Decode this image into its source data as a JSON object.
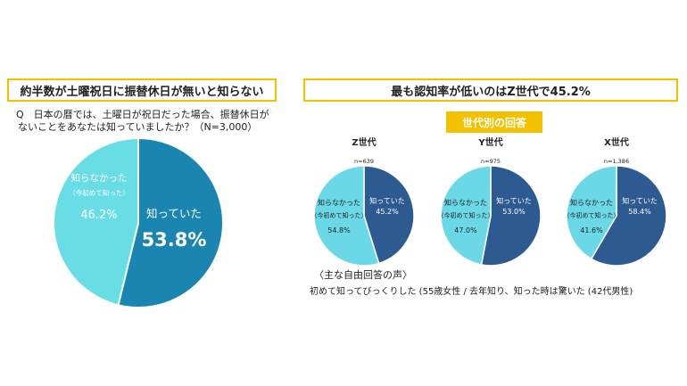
{
  "left": {
    "title": "約半数が土曜祝日に振替休日が無いと知らない",
    "question_line1": "Q　日本の暦では、土曜日が祝日だった場合、振替休日が",
    "question_line2": "ないことをあなたは知っていましたか？（N=3,000）"
  },
  "right": {
    "title": "最も認知率が低いのはZ世代で45.2%",
    "badge": "世代別の回答",
    "voices_head": "〈主な自由回答の声〉",
    "voices_body": "初めて知ってびっくりした (55歳女性 / 去年知り、知った時は驚いた (42代男性)"
  },
  "colors": {
    "known_main": "#1a85b0",
    "unknown_main": "#69dde6",
    "known_gen": "#2e5a92",
    "unknown_gen": "#6ad8e6",
    "accent": "#f2c200"
  },
  "chart_data": [
    {
      "type": "pie",
      "title": "",
      "slices": [
        {
          "label": "知っていた",
          "value": 53.8,
          "value_label": "53.8%"
        },
        {
          "label": "知らなかった",
          "sublabel": "（今初めて知った）",
          "value": 46.2,
          "value_label": "46.2%"
        }
      ]
    },
    {
      "type": "pie",
      "title": "Z世代",
      "n_label": "n=639",
      "slices": [
        {
          "label": "知っていた",
          "value": 45.2,
          "value_label": "45.2%"
        },
        {
          "label": "知らなかった",
          "sublabel": "（今初めて知った）",
          "value": 54.8,
          "value_label": "54.8%"
        }
      ]
    },
    {
      "type": "pie",
      "title": "Y世代",
      "n_label": "n=975",
      "slices": [
        {
          "label": "知っていた",
          "value": 53.0,
          "value_label": "53.0%"
        },
        {
          "label": "知らなかった",
          "sublabel": "（今初めて知った）",
          "value": 47.0,
          "value_label": "47.0%"
        }
      ]
    },
    {
      "type": "pie",
      "title": "X世代",
      "n_label": "n=1,386",
      "slices": [
        {
          "label": "知っていた",
          "value": 58.4,
          "value_label": "58.4%"
        },
        {
          "label": "知らなかった",
          "sublabel": "（今初めて知った）",
          "value": 41.6,
          "value_label": "41.6%"
        }
      ]
    }
  ]
}
